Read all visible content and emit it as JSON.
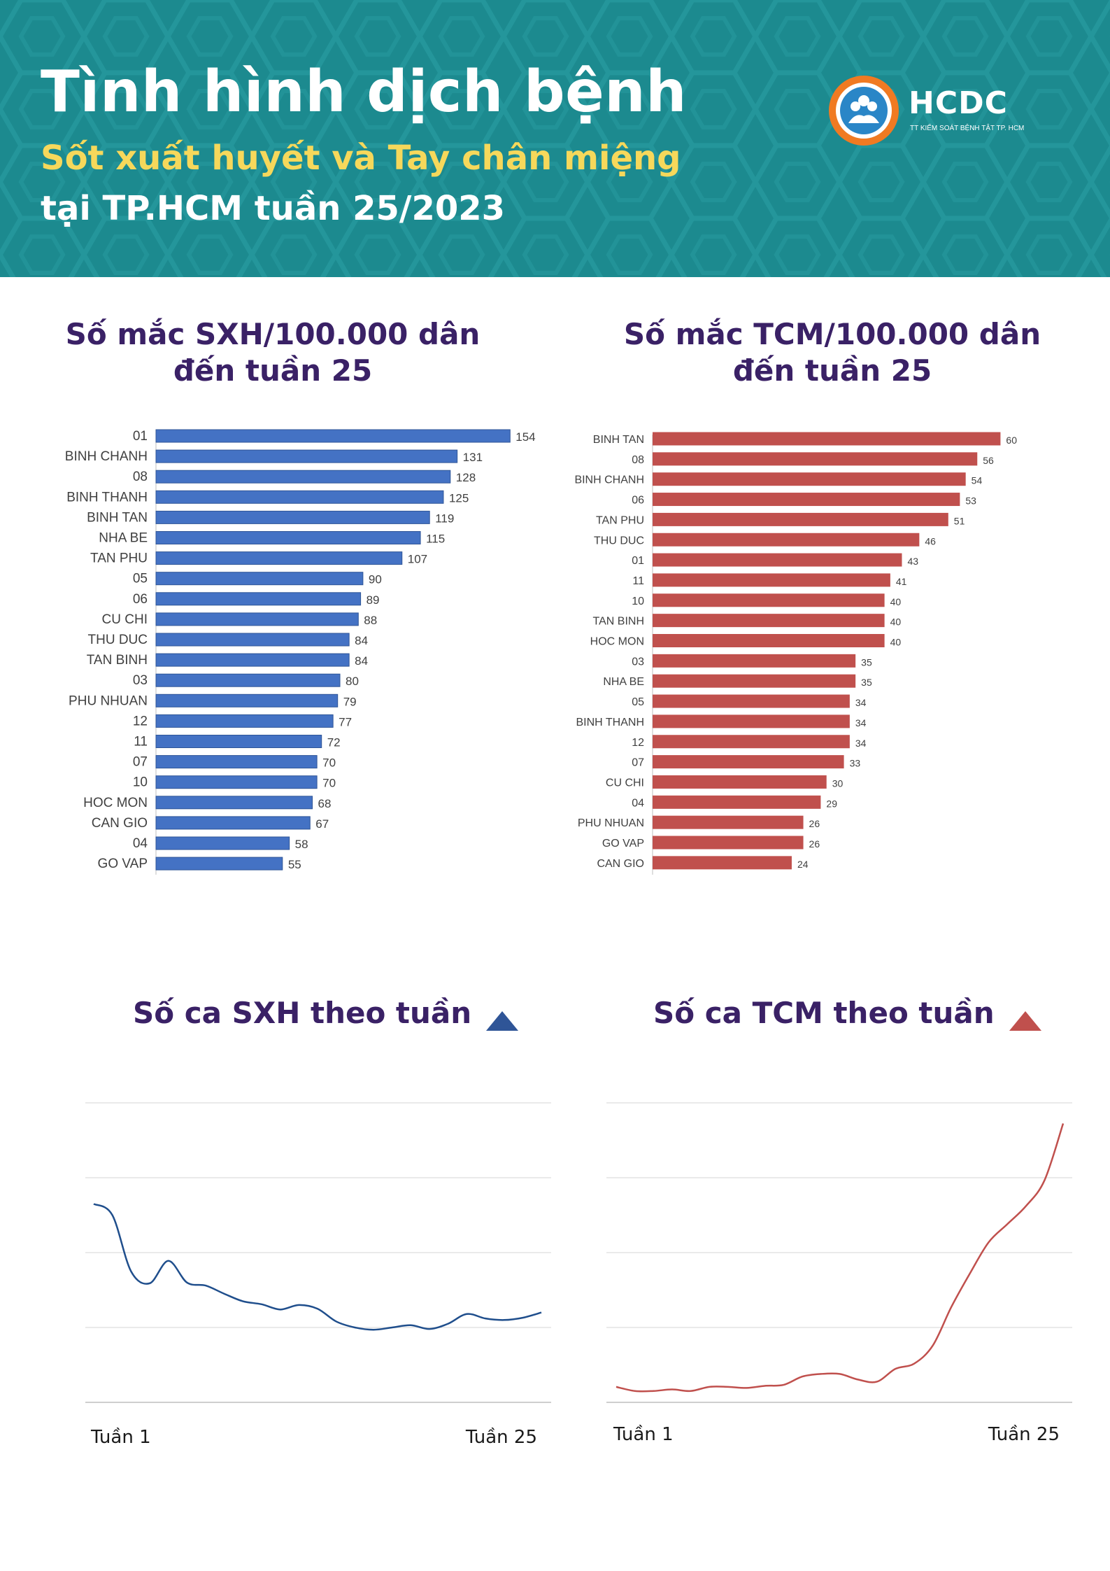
{
  "header": {
    "title": "Tình hình dịch bệnh",
    "subtitle": "Sốt xuất huyết và Tay chân miệng",
    "subtitle2": "tại TP.HCM tuần 25/2023",
    "logo_text": "HCDC",
    "logo_tagline": "TT KIỂM SOÁT BỆNH TẬT TP. HCM"
  },
  "colors": {
    "header_bg": "#1c8a8f",
    "title_purple": "#3a2166",
    "subtitle_yellow": "#f6d85b",
    "sxh_blue": "#4472c4",
    "sxh_line": "#1f4e8c",
    "tcm_red": "#c0504d",
    "logo_orange": "#f07a22"
  },
  "sections": {
    "sxh_bar_title": "Số mắc SXH/100.000 dân\nđến tuần 25",
    "tcm_bar_title": "Số mắc TCM/100.000 dân\nđến tuần 25",
    "sxh_line_title": "Số ca SXH theo tuần",
    "tcm_line_title": "Số ca TCM theo tuần",
    "trend_icon": "triangle-up-icon"
  },
  "chart_data": [
    {
      "type": "bar",
      "orientation": "horizontal",
      "title": "Số mắc SXH/100.000 dân đến tuần 25",
      "categories": [
        "01",
        "BINH CHANH",
        "08",
        "BINH THANH",
        "BINH TAN",
        "NHA BE",
        "TAN PHU",
        "05",
        "06",
        "CU CHI",
        "THU DUC",
        "TAN BINH",
        "03",
        "PHU NHUAN",
        "12",
        "11",
        "07",
        "10",
        "HOC MON",
        "CAN GIO",
        "04",
        "GO VAP"
      ],
      "values": [
        154,
        131,
        128,
        125,
        119,
        115,
        107,
        90,
        89,
        88,
        84,
        84,
        80,
        79,
        77,
        72,
        70,
        70,
        68,
        67,
        58,
        55
      ],
      "xlim": [
        0,
        160
      ]
    },
    {
      "type": "bar",
      "orientation": "horizontal",
      "title": "Số mắc TCM/100.000 dân đến tuần 25",
      "categories": [
        "BINH TAN",
        "08",
        "BINH CHANH",
        "06",
        "TAN PHU",
        "THU DUC",
        "01",
        "11",
        "10",
        "TAN BINH",
        "HOC MON",
        "03",
        "NHA BE",
        "05",
        "BINH THANH",
        "12",
        "07",
        "CU CHI",
        "04",
        "PHU NHUAN",
        "GO VAP",
        "CAN GIO"
      ],
      "values": [
        60,
        56,
        54,
        53,
        51,
        46,
        43,
        41,
        40,
        40,
        40,
        35,
        35,
        34,
        34,
        34,
        33,
        30,
        29,
        26,
        26,
        24
      ],
      "xlim": [
        0,
        62
      ]
    },
    {
      "type": "line",
      "title": "Số ca SXH theo tuần",
      "x_start_label": "Tuần 1",
      "x_end_label": "Tuần 25",
      "x": [
        1,
        2,
        3,
        4,
        5,
        6,
        7,
        8,
        9,
        10,
        11,
        12,
        13,
        14,
        15,
        16,
        17,
        18,
        19,
        20,
        21,
        22,
        23,
        24,
        25
      ],
      "values": [
        265,
        250,
        175,
        159,
        189,
        160,
        156,
        145,
        135,
        131,
        124,
        130,
        125,
        108,
        100,
        97,
        100,
        103,
        98,
        105,
        118,
        112,
        110,
        113,
        120
      ],
      "ylim": [
        0,
        400
      ],
      "grid": true
    },
    {
      "type": "line",
      "title": "Số ca TCM theo tuần",
      "x_start_label": "Tuần 1",
      "x_end_label": "Tuần 25",
      "x": [
        1,
        2,
        3,
        4,
        5,
        6,
        7,
        8,
        9,
        10,
        11,
        12,
        13,
        14,
        15,
        16,
        17,
        18,
        19,
        20,
        21,
        22,
        23,
        24,
        25
      ],
      "values": [
        30,
        22,
        22,
        25,
        22,
        30,
        30,
        28,
        32,
        34,
        50,
        55,
        55,
        44,
        40,
        65,
        75,
        110,
        185,
        250,
        310,
        345,
        380,
        430,
        540
      ],
      "ylim": [
        0,
        580
      ],
      "grid": true
    }
  ]
}
